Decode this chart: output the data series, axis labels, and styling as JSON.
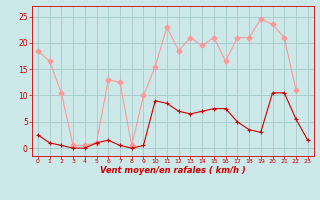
{
  "rafales_x": [
    0,
    1,
    2,
    3,
    4,
    5,
    6,
    7,
    8,
    9,
    10,
    11,
    12,
    13,
    14,
    15,
    16,
    17,
    18,
    19,
    20,
    21,
    22
  ],
  "rafales_y": [
    18.5,
    16.5,
    10.5,
    0.5,
    0.5,
    1.0,
    13.0,
    12.5,
    0.5,
    10.0,
    15.5,
    23.0,
    18.5,
    21.0,
    19.5,
    21.0,
    16.5,
    21.0,
    21.0,
    24.5,
    23.5,
    21.0,
    11.0
  ],
  "moyen_x": [
    0,
    1,
    2,
    3,
    4,
    5,
    6,
    7,
    8,
    9,
    10,
    11,
    12,
    13,
    14,
    15,
    16,
    17,
    18,
    19,
    20,
    21,
    22,
    23
  ],
  "moyen_y": [
    2.5,
    1.0,
    0.5,
    0.0,
    0.0,
    1.0,
    1.5,
    0.5,
    0.0,
    0.5,
    9.0,
    8.5,
    7.0,
    6.5,
    7.0,
    7.5,
    7.5,
    5.0,
    3.5,
    3.0,
    10.5,
    10.5,
    5.5,
    1.5
  ],
  "background_color": "#cce8e8",
  "grid_color": "#aacece",
  "rafales_color": "#ff9999",
  "moyen_color": "#cc0000",
  "xlabel": "Vent moyen/en rafales ( km/h )",
  "yticks": [
    0,
    5,
    10,
    15,
    20,
    25
  ],
  "xticks": [
    0,
    1,
    2,
    3,
    4,
    5,
    6,
    7,
    8,
    9,
    10,
    11,
    12,
    13,
    14,
    15,
    16,
    17,
    18,
    19,
    20,
    21,
    22,
    23
  ],
  "ylim": [
    -1.5,
    27
  ],
  "xlim": [
    -0.5,
    23.5
  ],
  "label_color": "#cc0000",
  "spine_color": "#cc0000"
}
